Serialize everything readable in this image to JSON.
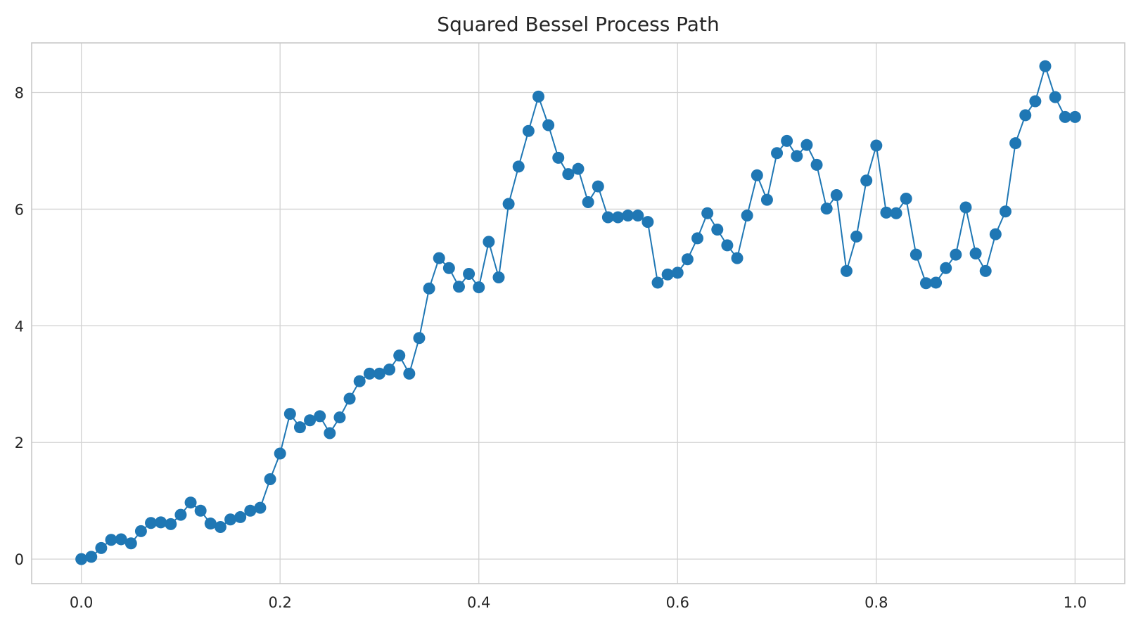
{
  "chart_data": {
    "type": "line",
    "title": "Squared Bessel Process Path",
    "xlabel": "",
    "ylabel": "",
    "xlim": [
      -0.05,
      1.05
    ],
    "ylim": [
      -0.42,
      8.85
    ],
    "xticks": [
      0.0,
      0.2,
      0.4,
      0.6,
      0.8,
      1.0
    ],
    "xtick_labels": [
      "0.0",
      "0.2",
      "0.4",
      "0.6",
      "0.8",
      "1.0"
    ],
    "yticks": [
      0,
      2,
      4,
      6,
      8
    ],
    "ytick_labels": [
      "0",
      "2",
      "4",
      "6",
      "8"
    ],
    "grid": true,
    "marker": "circle",
    "color": "#1f77b4",
    "series": [
      {
        "x": [
          0.0,
          0.01,
          0.02,
          0.03,
          0.04,
          0.05,
          0.06,
          0.07,
          0.08,
          0.09,
          0.1,
          0.11,
          0.12,
          0.13,
          0.14,
          0.15,
          0.16,
          0.17,
          0.18,
          0.19,
          0.2,
          0.21,
          0.22,
          0.23,
          0.24,
          0.25,
          0.26,
          0.27,
          0.28,
          0.29,
          0.3,
          0.31,
          0.32,
          0.33,
          0.34,
          0.35,
          0.36,
          0.37,
          0.38,
          0.39,
          0.4,
          0.41,
          0.42,
          0.43,
          0.44,
          0.45,
          0.46,
          0.47,
          0.48,
          0.49,
          0.5,
          0.51,
          0.52,
          0.53,
          0.54,
          0.55,
          0.56,
          0.57,
          0.58,
          0.59,
          0.6,
          0.61,
          0.62,
          0.63,
          0.64,
          0.65,
          0.66,
          0.67,
          0.68,
          0.69,
          0.7,
          0.71,
          0.72,
          0.73,
          0.74,
          0.75,
          0.76,
          0.77,
          0.78,
          0.79,
          0.8,
          0.81,
          0.82,
          0.83,
          0.84,
          0.85,
          0.86,
          0.87,
          0.88,
          0.89,
          0.9,
          0.91,
          0.92,
          0.93,
          0.94,
          0.95,
          0.96,
          0.97,
          0.98,
          0.99,
          1.0
        ],
        "y": [
          0.0,
          0.04,
          0.19,
          0.33,
          0.34,
          0.27,
          0.48,
          0.62,
          0.63,
          0.6,
          0.76,
          0.97,
          0.83,
          0.61,
          0.55,
          0.68,
          0.72,
          0.83,
          0.88,
          1.37,
          1.81,
          2.49,
          2.26,
          2.38,
          2.45,
          2.16,
          2.43,
          2.75,
          3.05,
          3.18,
          3.18,
          3.25,
          3.49,
          3.18,
          3.79,
          4.64,
          5.16,
          4.99,
          4.67,
          4.89,
          4.66,
          5.44,
          4.83,
          6.09,
          6.73,
          7.34,
          7.93,
          7.44,
          6.88,
          6.6,
          6.69,
          6.12,
          6.39,
          5.86,
          5.86,
          5.89,
          5.89,
          5.78,
          4.74,
          4.88,
          4.91,
          5.14,
          5.5,
          5.93,
          5.65,
          5.38,
          5.16,
          5.89,
          6.58,
          6.16,
          6.96,
          7.17,
          6.91,
          7.1,
          6.76,
          6.01,
          6.24,
          4.94,
          5.53,
          6.49,
          7.09,
          5.94,
          5.93,
          6.18,
          5.22,
          4.73,
          4.74,
          4.99,
          5.22,
          6.03,
          5.24,
          4.94,
          5.57,
          5.96,
          7.13,
          7.61,
          7.85,
          8.45,
          7.92,
          7.58,
          7.58
        ]
      }
    ]
  }
}
